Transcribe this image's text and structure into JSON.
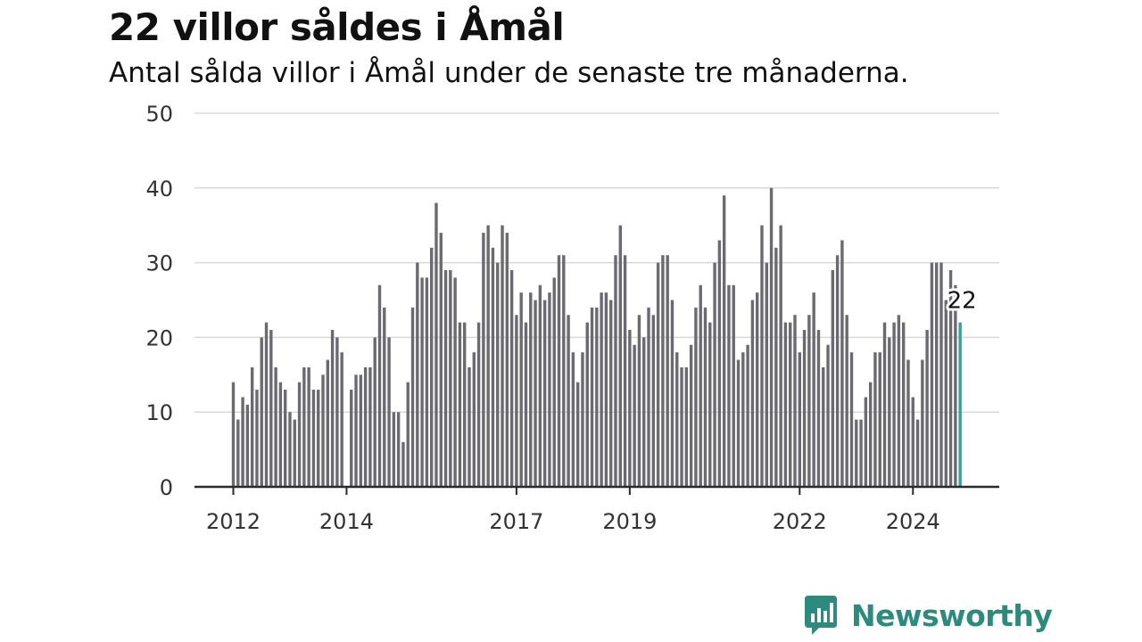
{
  "title": "22 villor såldes i Åmål",
  "subtitle": "Antal sålda villor i Åmål under de senaste tre månaderna.",
  "brand": {
    "name": "Newsworthy",
    "icon": "bar-chart-speech-bubble-icon"
  },
  "colors": {
    "bar": "#6b6a70",
    "highlight": "#26a79a",
    "brand": "#2d8b7d",
    "grid": "#d9d9d9",
    "axis": "#2a2a2a"
  },
  "chart_data": {
    "type": "bar",
    "title": "22 villor såldes i Åmål",
    "subtitle": "Antal sålda villor i Åmål under de senaste tre månaderna.",
    "xlabel": "",
    "ylabel": "",
    "ylim": [
      0,
      50
    ],
    "yticks": [
      0,
      10,
      20,
      30,
      40,
      50
    ],
    "xticks": [
      {
        "label": "2012",
        "index": 0
      },
      {
        "label": "2014",
        "index": 24
      },
      {
        "label": "2017",
        "index": 60
      },
      {
        "label": "2019",
        "index": 84
      },
      {
        "label": "2022",
        "index": 120
      },
      {
        "label": "2024",
        "index": 144
      }
    ],
    "grid": true,
    "start": "2012-01",
    "frequency": "monthly",
    "values": [
      14,
      9,
      12,
      11,
      16,
      13,
      20,
      22,
      21,
      16,
      14,
      13,
      10,
      9,
      14,
      16,
      16,
      13,
      13,
      15,
      17,
      21,
      20,
      18,
      0,
      13,
      15,
      15,
      16,
      16,
      20,
      27,
      24,
      20,
      10,
      10,
      6,
      14,
      24,
      30,
      28,
      28,
      32,
      38,
      34,
      29,
      29,
      28,
      22,
      22,
      16,
      18,
      22,
      34,
      35,
      32,
      30,
      35,
      34,
      29,
      23,
      26,
      22,
      26,
      25,
      27,
      25,
      26,
      28,
      31,
      31,
      23,
      18,
      14,
      18,
      22,
      24,
      24,
      26,
      26,
      25,
      31,
      35,
      31,
      21,
      19,
      23,
      20,
      24,
      23,
      30,
      31,
      31,
      25,
      18,
      16,
      16,
      19,
      24,
      27,
      24,
      22,
      30,
      33,
      39,
      27,
      27,
      17,
      18,
      19,
      25,
      26,
      35,
      30,
      40,
      32,
      35,
      22,
      22,
      23,
      18,
      21,
      23,
      26,
      21,
      16,
      19,
      29,
      31,
      33,
      23,
      18,
      9,
      9,
      12,
      14,
      18,
      18,
      22,
      20,
      22,
      23,
      22,
      17,
      12,
      9,
      17,
      21,
      30,
      30,
      30,
      25,
      29,
      27,
      22
    ],
    "highlight": {
      "index": 154,
      "value": 22,
      "label": "22"
    }
  }
}
